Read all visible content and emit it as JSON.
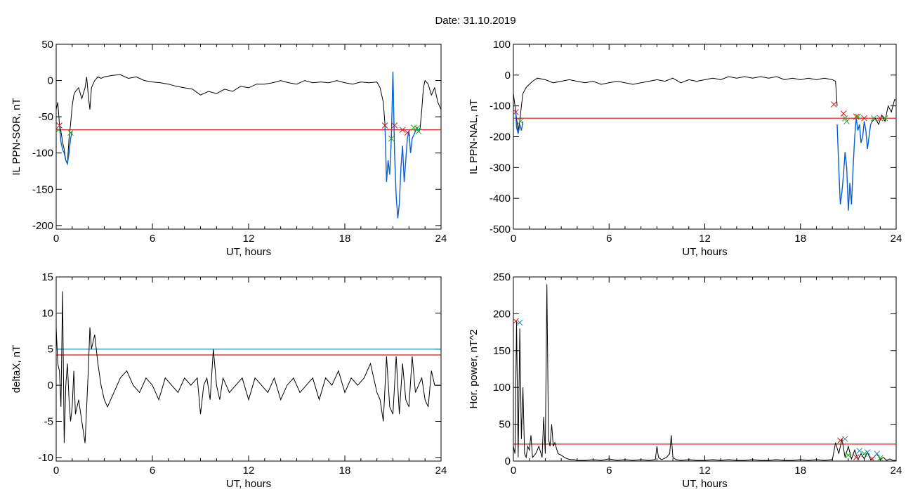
{
  "date_label": "Date:  31.10.2019",
  "colors": {
    "black": "#000000",
    "red": "#e01010",
    "blue": "#0a5fd0",
    "green": "#1aaa1a",
    "cyan": "#1a8fb0"
  },
  "chart_data": [
    {
      "id": "sor",
      "type": "line",
      "xlabel": "UT, hours",
      "ylabel": "IL PPN-SOR, nT",
      "xlim": [
        0,
        24
      ],
      "ylim": [
        -205,
        50
      ],
      "xticks": [
        0,
        6,
        12,
        18,
        24
      ],
      "yticks": [
        50,
        0,
        -50,
        -100,
        -150,
        -200
      ],
      "grid": false,
      "threshold_lines": [
        {
          "y": -68,
          "color": "red"
        }
      ],
      "series": [
        {
          "style": "black",
          "x": [
            0,
            0.1,
            0.2,
            0.3,
            0.4,
            0.5,
            0.6,
            0.7,
            0.8,
            0.9,
            1.0,
            1.1,
            1.2,
            1.4,
            1.6,
            1.8,
            1.9,
            2.0,
            2.1,
            2.2,
            2.4,
            2.6,
            2.8,
            3.0,
            3.5,
            4.0,
            4.5,
            5.0,
            5.5,
            6.0,
            6.5,
            7.0,
            7.5,
            8.0,
            8.5,
            9.0,
            9.5,
            10.0,
            10.5,
            11.0,
            11.5,
            12.0,
            12.5,
            13.0,
            13.5,
            14.0,
            14.5,
            15.0,
            15.5,
            16.0,
            16.5,
            17.0,
            17.5,
            18.0,
            18.5,
            19.0,
            19.5,
            20.0,
            20.2,
            20.4,
            20.5
          ],
          "y": [
            -40,
            -30,
            -60,
            -70,
            -85,
            -95,
            -110,
            -115,
            -80,
            -60,
            -35,
            -20,
            -15,
            -10,
            -25,
            -10,
            5,
            -20,
            -40,
            -10,
            0,
            5,
            3,
            5,
            7,
            8,
            3,
            5,
            0,
            -2,
            -3,
            -5,
            -8,
            -10,
            -12,
            -20,
            -15,
            -18,
            -12,
            -15,
            -8,
            -10,
            -5,
            -5,
            -3,
            0,
            -3,
            -5,
            0,
            -3,
            -2,
            -3,
            0,
            -3,
            -5,
            -2,
            -3,
            -2,
            -10,
            -30,
            -60
          ]
        },
        {
          "style": "blue",
          "x": [
            0.2,
            0.3,
            0.4,
            0.5,
            0.6,
            0.7,
            0.8,
            0.9,
            1.0
          ],
          "y": [
            -60,
            -85,
            -95,
            -100,
            -110,
            -115,
            -100,
            -80,
            -70
          ]
        },
        {
          "style": "blue",
          "x": [
            20.5,
            20.6,
            20.7,
            20.8,
            20.9,
            21.0,
            21.1,
            21.2,
            21.3,
            21.4,
            21.5,
            21.6,
            21.7,
            21.8,
            21.9,
            22.0,
            22.1,
            22.2,
            22.3,
            22.4,
            22.5,
            22.6,
            22.7
          ],
          "y": [
            -60,
            -140,
            -110,
            -130,
            -80,
            12,
            -100,
            -160,
            -190,
            -170,
            -120,
            -90,
            -140,
            -110,
            -80,
            -70,
            -100,
            -80,
            -75,
            -70,
            -65,
            -70,
            -65
          ]
        },
        {
          "style": "black",
          "x": [
            22.7,
            22.8,
            22.9,
            23.0,
            23.2,
            23.4,
            23.6,
            23.8,
            24.0
          ],
          "y": [
            -65,
            -40,
            -10,
            0,
            -5,
            -20,
            -10,
            -30,
            -40
          ]
        }
      ],
      "markers": [
        {
          "x": 0.2,
          "y": -62,
          "color": "red"
        },
        {
          "x": 0.15,
          "y": -68,
          "color": "green"
        },
        {
          "x": 0.9,
          "y": -72,
          "color": "green"
        },
        {
          "x": 20.5,
          "y": -62,
          "color": "red"
        },
        {
          "x": 21.1,
          "y": -62,
          "color": "red"
        },
        {
          "x": 20.9,
          "y": -80,
          "color": "green"
        },
        {
          "x": 21.6,
          "y": -68,
          "color": "red"
        },
        {
          "x": 21.9,
          "y": -72,
          "color": "red"
        },
        {
          "x": 22.3,
          "y": -65,
          "color": "green"
        },
        {
          "x": 22.5,
          "y": -66,
          "color": "green"
        },
        {
          "x": 22.6,
          "y": -70,
          "color": "green"
        }
      ]
    },
    {
      "id": "nal",
      "type": "line",
      "xlabel": "UT, hours",
      "ylabel": "IL PPN-NAL, nT",
      "xlim": [
        0,
        24
      ],
      "ylim": [
        -500,
        100
      ],
      "xticks": [
        0,
        6,
        12,
        18,
        24
      ],
      "yticks": [
        100,
        0,
        -100,
        -200,
        -300,
        -400,
        -500
      ],
      "grid": false,
      "threshold_lines": [
        {
          "y": -140,
          "color": "red"
        }
      ],
      "series": [
        {
          "style": "black",
          "x": [
            0,
            0.1,
            0.2,
            0.3,
            0.4,
            0.5,
            0.6,
            0.8,
            1.0,
            1.2,
            1.5,
            2.0,
            2.5,
            3.0,
            3.5,
            4.0,
            4.5,
            5.0,
            5.5,
            6.0,
            6.5,
            7.0,
            7.5,
            8.0,
            8.5,
            9.0,
            9.5,
            10.0,
            10.5,
            11.0,
            11.5,
            12.0,
            12.5,
            13.0,
            13.5,
            14.0,
            14.5,
            15.0,
            15.5,
            16.0,
            16.5,
            17.0,
            17.5,
            18.0,
            18.5,
            19.0,
            19.5,
            20.0,
            20.2,
            20.3
          ],
          "y": [
            -60,
            -100,
            -140,
            -180,
            -150,
            -100,
            -60,
            -40,
            -30,
            -20,
            -10,
            -15,
            -25,
            -20,
            -15,
            -20,
            -25,
            -20,
            -30,
            -25,
            -20,
            -25,
            -30,
            -25,
            -20,
            -15,
            -20,
            -10,
            -25,
            -15,
            -20,
            -15,
            -10,
            -15,
            -5,
            -10,
            -5,
            -10,
            -5,
            -10,
            -5,
            -15,
            -10,
            -15,
            -10,
            -15,
            -10,
            -15,
            -20,
            -100
          ]
        },
        {
          "style": "blue",
          "x": [
            0.15,
            0.2,
            0.3,
            0.4,
            0.5,
            0.6
          ],
          "y": [
            -120,
            -170,
            -190,
            -160,
            -180,
            -150
          ]
        },
        {
          "style": "blue",
          "x": [
            20.3,
            20.4,
            20.5,
            20.6,
            20.7,
            20.8,
            20.9,
            21.0,
            21.1,
            21.2,
            21.3,
            21.4,
            21.5,
            21.6,
            21.7,
            21.8,
            21.9,
            22.0,
            22.1,
            22.2,
            22.3,
            22.4,
            22.5
          ],
          "y": [
            -160,
            -300,
            -420,
            -380,
            -320,
            -250,
            -300,
            -440,
            -350,
            -420,
            -300,
            -200,
            -140,
            -180,
            -160,
            -220,
            -200,
            -150,
            -180,
            -240,
            -200,
            -160,
            -150
          ]
        },
        {
          "style": "black",
          "x": [
            22.5,
            22.7,
            22.9,
            23.1,
            23.3,
            23.5,
            23.7,
            23.9,
            24.0
          ],
          "y": [
            -150,
            -140,
            -160,
            -130,
            -150,
            -100,
            -120,
            -80,
            -80
          ]
        }
      ],
      "markers": [
        {
          "x": 0.15,
          "y": -120,
          "color": "red"
        },
        {
          "x": 0.45,
          "y": -150,
          "color": "green"
        },
        {
          "x": 20.1,
          "y": -95,
          "color": "red"
        },
        {
          "x": 20.7,
          "y": -125,
          "color": "red"
        },
        {
          "x": 20.8,
          "y": -140,
          "color": "green"
        },
        {
          "x": 20.9,
          "y": -150,
          "color": "green"
        },
        {
          "x": 21.5,
          "y": -135,
          "color": "red"
        },
        {
          "x": 21.6,
          "y": -135,
          "color": "green"
        },
        {
          "x": 22.0,
          "y": -140,
          "color": "red"
        },
        {
          "x": 22.6,
          "y": -140,
          "color": "green"
        },
        {
          "x": 23.0,
          "y": -140,
          "color": "red"
        },
        {
          "x": 23.3,
          "y": -140,
          "color": "green"
        }
      ]
    },
    {
      "id": "deltax",
      "type": "line",
      "xlabel": "UT, hours",
      "ylabel": "deltaX, nT",
      "xlim": [
        0,
        24
      ],
      "ylim": [
        -10.5,
        15
      ],
      "xticks": [
        0,
        6,
        12,
        18,
        24
      ],
      "yticks": [
        15,
        10,
        5,
        0,
        -5,
        -10
      ],
      "grid": false,
      "threshold_lines": [
        {
          "y": 5.0,
          "color": "cyan"
        },
        {
          "y": 4.2,
          "color": "red"
        }
      ],
      "series": [
        {
          "style": "black",
          "x": [
            0,
            0.1,
            0.2,
            0.3,
            0.4,
            0.5,
            0.6,
            0.7,
            0.8,
            0.9,
            1.0,
            1.1,
            1.2,
            1.4,
            1.6,
            1.8,
            2.0,
            2.1,
            2.2,
            2.4,
            2.6,
            2.8,
            3.0,
            3.2,
            3.4,
            3.6,
            3.8,
            4.0,
            4.4,
            4.8,
            5.2,
            5.6,
            6.0,
            6.4,
            6.8,
            7.2,
            7.6,
            8.0,
            8.4,
            8.8,
            9.0,
            9.2,
            9.4,
            9.6,
            9.8,
            10.0,
            10.2,
            10.4,
            10.8,
            11.2,
            11.6,
            12.0,
            12.4,
            12.8,
            13.2,
            13.6,
            14.0,
            14.4,
            14.8,
            15.2,
            15.6,
            16.0,
            16.4,
            16.8,
            17.2,
            17.6,
            18.0,
            18.4,
            18.8,
            19.2,
            19.6,
            20.0,
            20.2,
            20.4,
            20.6,
            20.8,
            21.0,
            21.2,
            21.4,
            21.6,
            21.8,
            22.0,
            22.2,
            22.4,
            22.6,
            22.8,
            23.0,
            23.2,
            23.4,
            23.6,
            23.8,
            24.0
          ],
          "y": [
            8,
            3,
            2,
            -3,
            13,
            -8,
            0,
            3,
            -2,
            -5,
            -3,
            2,
            -4,
            -2,
            -5,
            -8,
            2,
            8,
            5,
            7,
            3,
            0,
            -2,
            -3,
            -2,
            -1,
            0,
            1,
            2,
            0,
            -1,
            1,
            0,
            -2,
            1,
            0,
            -1,
            1,
            0,
            1,
            -4,
            0,
            1,
            -2,
            5,
            0,
            -2,
            1,
            -1,
            0,
            1,
            -2,
            1,
            0,
            -1,
            1,
            -2,
            0,
            1,
            -1,
            0,
            1,
            -2,
            1,
            0,
            2,
            -1,
            1,
            0,
            1,
            3,
            -1,
            -2,
            -5,
            4,
            -3,
            -4,
            4,
            -4,
            3,
            -2,
            -3,
            4,
            -1,
            0,
            1,
            -2,
            -3,
            2,
            0,
            0,
            0
          ]
        }
      ],
      "markers": []
    },
    {
      "id": "power",
      "type": "line",
      "xlabel": "UT, hours",
      "ylabel": "Hor. power, nT^2",
      "xlim": [
        0,
        24
      ],
      "ylim": [
        0,
        250
      ],
      "xticks": [
        0,
        6,
        12,
        18,
        24
      ],
      "yticks": [
        250,
        200,
        150,
        100,
        50,
        0
      ],
      "grid": false,
      "threshold_lines": [
        {
          "y": 23,
          "color": "red"
        }
      ],
      "series": [
        {
          "style": "black",
          "x": [
            0,
            0.1,
            0.2,
            0.3,
            0.4,
            0.5,
            0.6,
            0.7,
            0.8,
            0.9,
            1.0,
            1.1,
            1.2,
            1.4,
            1.6,
            1.8,
            1.9,
            2.0,
            2.1,
            2.2,
            2.3,
            2.4,
            2.5,
            2.6,
            2.8,
            3.0,
            3.2,
            3.4,
            3.6,
            3.8,
            4.0,
            4.5,
            5.0,
            5.5,
            6.0,
            6.5,
            7.0,
            7.5,
            8.0,
            8.5,
            8.9,
            9.0,
            9.1,
            9.3,
            9.6,
            9.8,
            9.9,
            10.0,
            10.2,
            10.5,
            11.0,
            11.5,
            12.0,
            12.5,
            13.0,
            13.5,
            14.0,
            14.5,
            15.0,
            15.5,
            16.0,
            16.5,
            17.0,
            17.5,
            18.0,
            18.5,
            19.0,
            19.5,
            20.0,
            20.2,
            20.4,
            20.6,
            20.8,
            21.0,
            21.2,
            21.4,
            21.6,
            21.8,
            22.0,
            22.2,
            22.4,
            22.6,
            22.8,
            23.0,
            23.2,
            23.4,
            23.6,
            23.8,
            24.0
          ],
          "y": [
            20,
            10,
            190,
            5,
            180,
            30,
            100,
            10,
            5,
            20,
            15,
            35,
            5,
            10,
            20,
            5,
            60,
            10,
            240,
            30,
            20,
            50,
            20,
            25,
            10,
            8,
            5,
            3,
            2,
            2,
            1,
            1,
            2,
            1,
            3,
            1,
            2,
            1,
            2,
            1,
            2,
            20,
            5,
            2,
            5,
            10,
            35,
            5,
            2,
            1,
            2,
            1,
            1,
            2,
            1,
            2,
            1,
            1,
            2,
            1,
            1,
            2,
            1,
            1,
            2,
            1,
            2,
            1,
            2,
            25,
            10,
            30,
            5,
            20,
            3,
            15,
            2,
            10,
            3,
            12,
            2,
            5,
            10,
            2,
            5,
            1,
            3,
            1,
            1
          ]
        }
      ],
      "markers": [
        {
          "x": 0.15,
          "y": 190,
          "color": "red"
        },
        {
          "x": 0.4,
          "y": 188,
          "color": "cyan"
        },
        {
          "x": 20.5,
          "y": 28,
          "color": "red"
        },
        {
          "x": 20.8,
          "y": 30,
          "color": "cyan"
        },
        {
          "x": 21.0,
          "y": 8,
          "color": "green"
        },
        {
          "x": 21.5,
          "y": 5,
          "color": "red"
        },
        {
          "x": 21.7,
          "y": 14,
          "color": "cyan"
        },
        {
          "x": 22.0,
          "y": 10,
          "color": "green"
        },
        {
          "x": 22.2,
          "y": 12,
          "color": "cyan"
        },
        {
          "x": 22.5,
          "y": 3,
          "color": "red"
        },
        {
          "x": 22.8,
          "y": 10,
          "color": "cyan"
        },
        {
          "x": 23.0,
          "y": 4,
          "color": "green"
        }
      ]
    }
  ]
}
